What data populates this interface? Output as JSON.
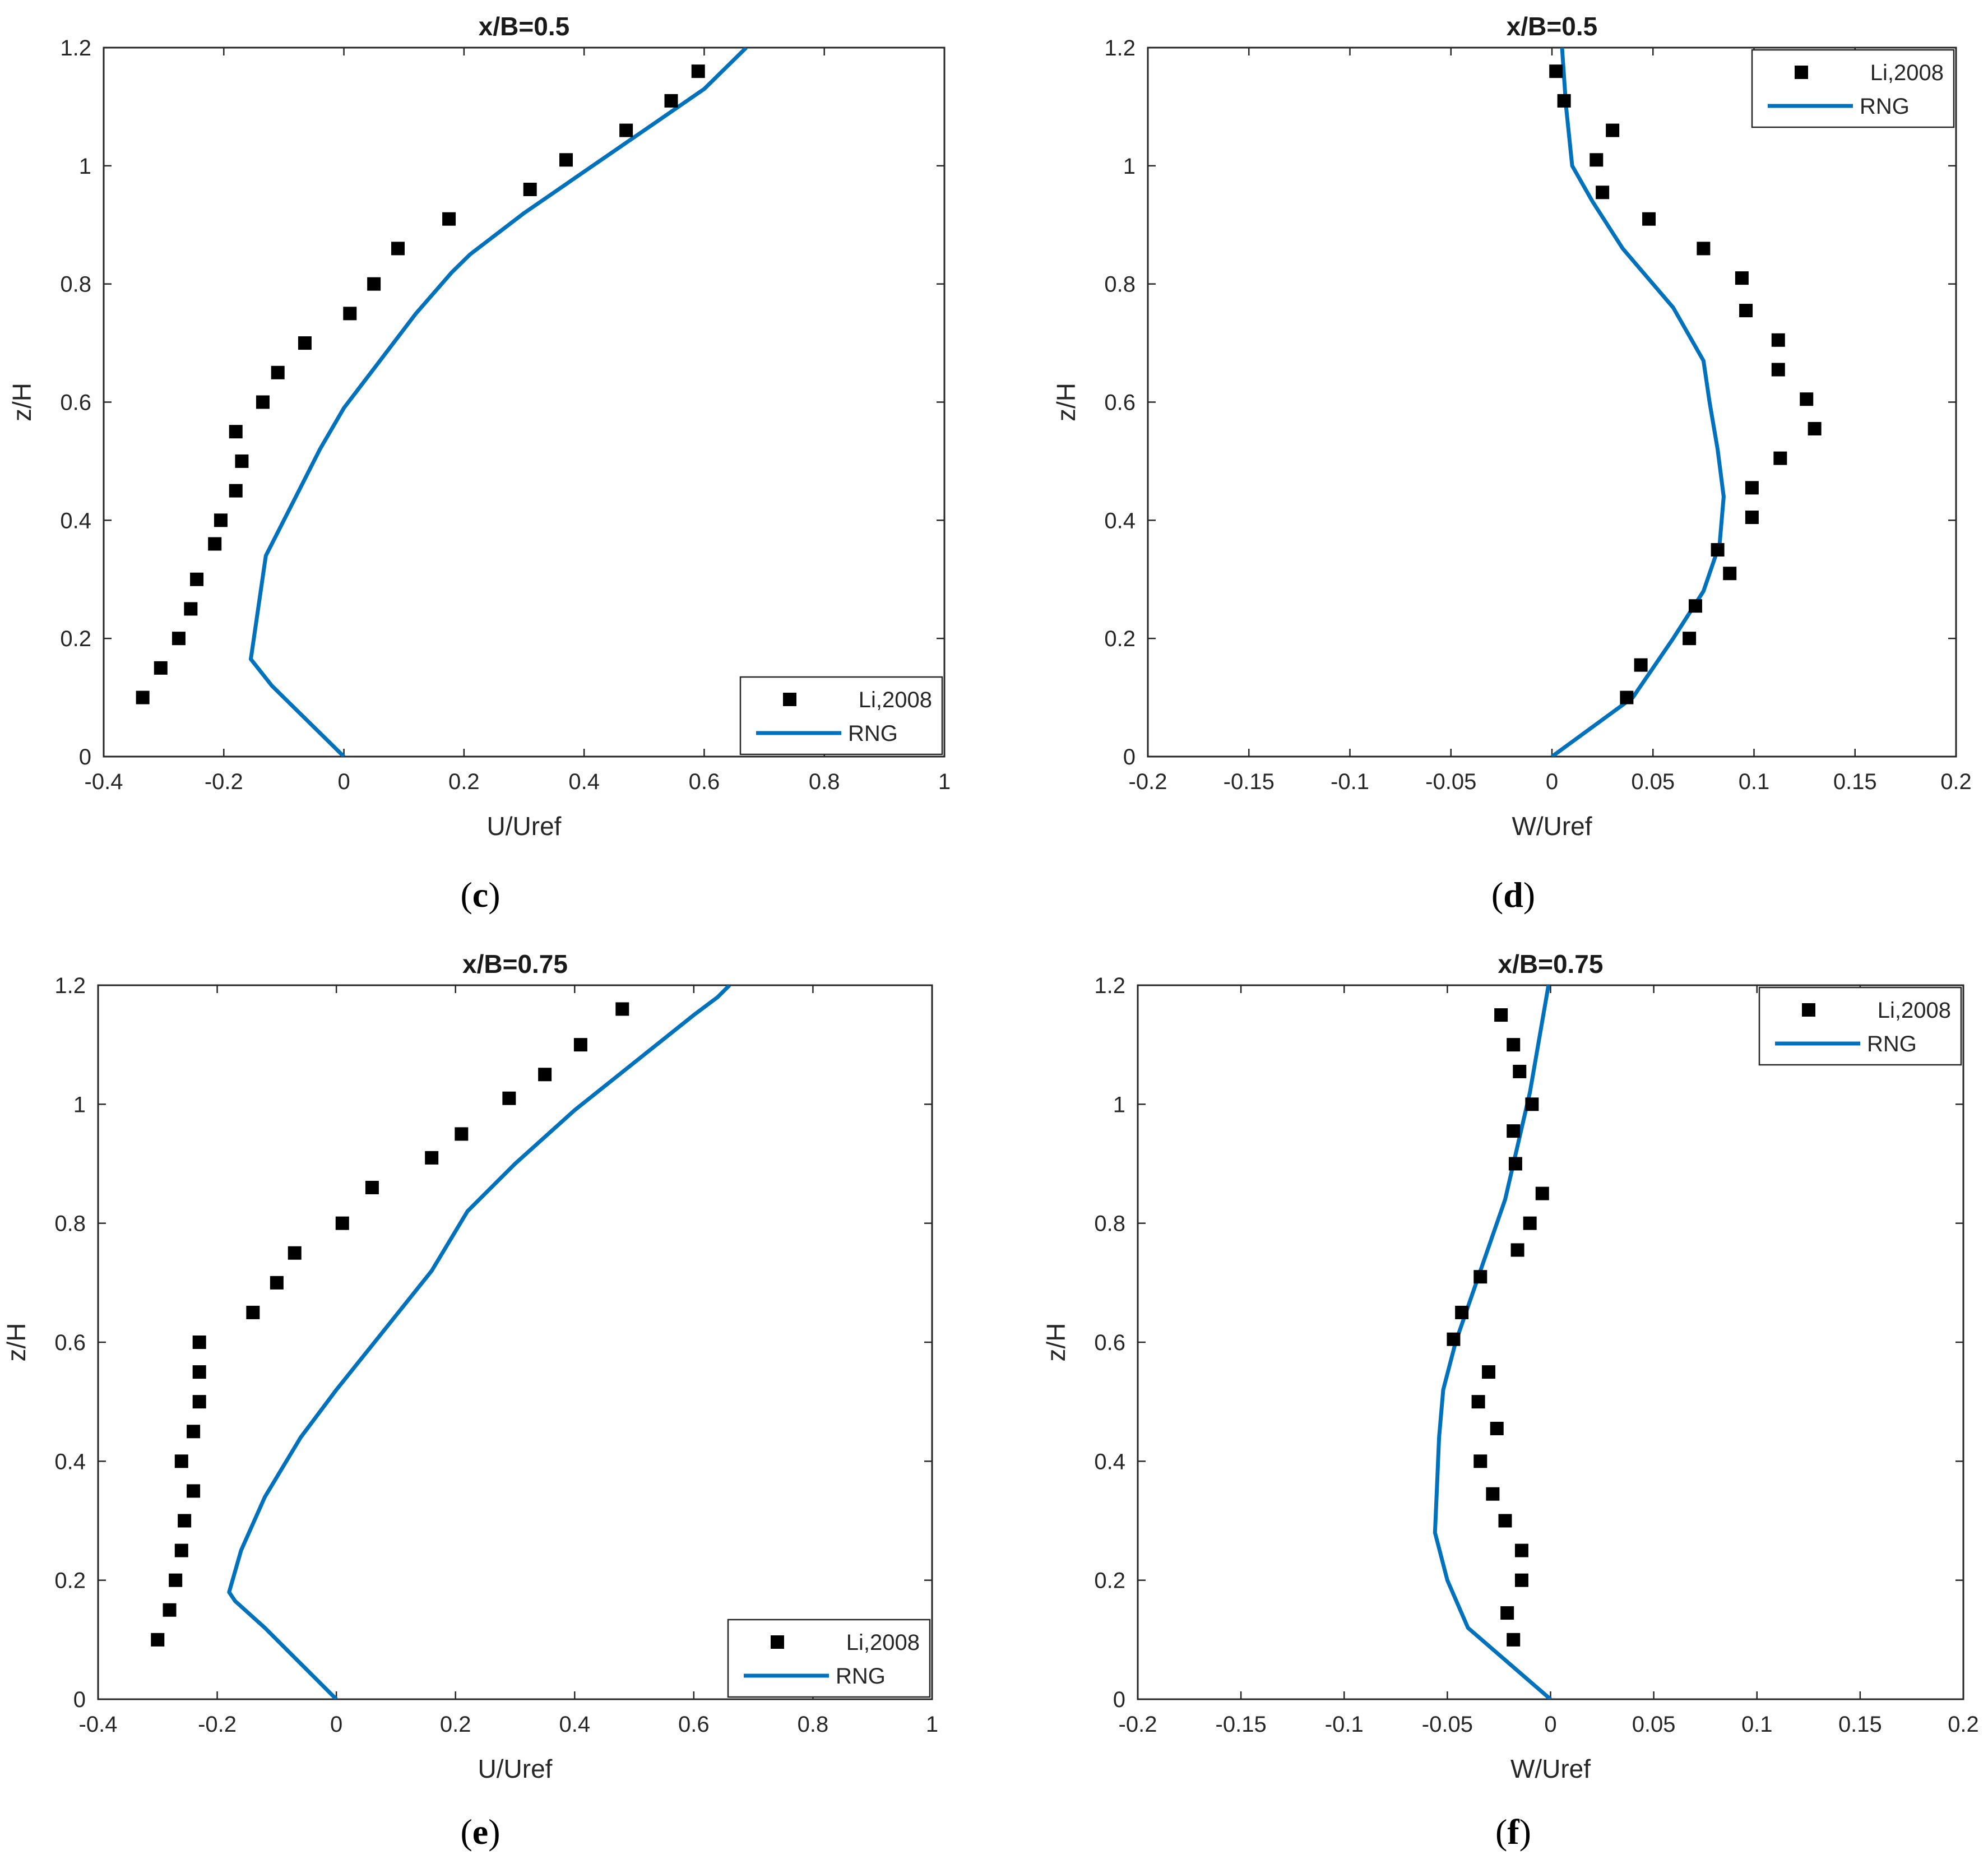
{
  "chart_data": [
    {
      "type": "scatter+line",
      "title": "x/B=0.5",
      "panel": "c",
      "xlabel": "U/Uref",
      "ylabel": "z/H",
      "xlim": [
        -0.4,
        1
      ],
      "ylim": [
        0,
        1.2
      ],
      "xticks": [
        -0.4,
        -0.2,
        0,
        0.2,
        0.4,
        0.6,
        0.8,
        1
      ],
      "xtick_labels": [
        "-0.4",
        "-0.2",
        "0",
        "0.2",
        "0.4",
        "0.6",
        "0.8",
        "1"
      ],
      "yticks": [
        0,
        0.2,
        0.4,
        0.6,
        0.8,
        1,
        1.2
      ],
      "ytick_labels": [
        "0",
        "0.2",
        "0.4",
        "0.6",
        "0.8",
        "1",
        "1.2"
      ],
      "legend_position": "bottom-right",
      "series": [
        {
          "name": "Li,2008",
          "kind": "markers",
          "x": [
            -0.335,
            -0.305,
            -0.275,
            -0.255,
            -0.245,
            -0.215,
            -0.205,
            -0.18,
            -0.17,
            -0.18,
            -0.135,
            -0.11,
            -0.065,
            0.01,
            0.05,
            0.09,
            0.175,
            0.31,
            0.37,
            0.47,
            0.545,
            0.59
          ],
          "y": [
            0.1,
            0.15,
            0.2,
            0.25,
            0.3,
            0.36,
            0.4,
            0.45,
            0.5,
            0.55,
            0.6,
            0.65,
            0.7,
            0.75,
            0.8,
            0.86,
            0.91,
            0.96,
            1.01,
            1.06,
            1.11,
            1.16
          ]
        },
        {
          "name": "RNG",
          "kind": "line",
          "x": [
            0,
            -0.04,
            -0.08,
            -0.12,
            -0.155,
            -0.15,
            -0.14,
            -0.13,
            -0.08,
            -0.04,
            0.0,
            0.06,
            0.12,
            0.18,
            0.21,
            0.3,
            0.4,
            0.5,
            0.6,
            0.64,
            0.67
          ],
          "y": [
            0,
            0.04,
            0.08,
            0.12,
            0.165,
            0.2,
            0.27,
            0.34,
            0.44,
            0.52,
            0.59,
            0.67,
            0.75,
            0.82,
            0.85,
            0.92,
            0.99,
            1.06,
            1.13,
            1.17,
            1.2
          ]
        }
      ]
    },
    {
      "type": "scatter+line",
      "title": "x/B=0.5",
      "panel": "d",
      "xlabel": "W/Uref",
      "ylabel": "z/H",
      "xlim": [
        -0.2,
        0.2
      ],
      "ylim": [
        0,
        1.2
      ],
      "xticks": [
        -0.2,
        -0.15,
        -0.1,
        -0.05,
        0,
        0.05,
        0.1,
        0.15,
        0.2
      ],
      "xtick_labels": [
        "-0.2",
        "-0.15",
        "-0.1",
        "-0.05",
        "0",
        "0.05",
        "0.1",
        "0.15",
        "0.2"
      ],
      "yticks": [
        0,
        0.2,
        0.4,
        0.6,
        0.8,
        1,
        1.2
      ],
      "ytick_labels": [
        "0",
        "0.2",
        "0.4",
        "0.6",
        "0.8",
        "1",
        "1.2"
      ],
      "legend_position": "top-right",
      "series": [
        {
          "name": "Li,2008",
          "kind": "markers",
          "x": [
            0.037,
            0.044,
            0.068,
            0.071,
            0.088,
            0.082,
            0.099,
            0.099,
            0.113,
            0.13,
            0.126,
            0.112,
            0.112,
            0.096,
            0.094,
            0.075,
            0.048,
            0.025,
            0.022,
            0.03,
            0.006,
            0.002
          ],
          "y": [
            0.1,
            0.155,
            0.2,
            0.255,
            0.31,
            0.35,
            0.405,
            0.455,
            0.505,
            0.555,
            0.605,
            0.655,
            0.705,
            0.755,
            0.81,
            0.86,
            0.91,
            0.955,
            1.01,
            1.06,
            1.11,
            1.16
          ],
          "marker_overflow_note": "points drawn within axes"
        },
        {
          "name": "RNG",
          "kind": "line",
          "x": [
            0,
            0.02,
            0.04,
            0.05,
            0.06,
            0.075,
            0.083,
            0.085,
            0.082,
            0.078,
            0.075,
            0.06,
            0.035,
            0.02,
            0.01,
            0.007,
            0.005
          ],
          "y": [
            0,
            0.05,
            0.1,
            0.15,
            0.2,
            0.28,
            0.36,
            0.44,
            0.52,
            0.6,
            0.67,
            0.76,
            0.86,
            0.94,
            1.0,
            1.1,
            1.2
          ]
        }
      ]
    },
    {
      "type": "scatter+line",
      "title": "x/B=0.75",
      "panel": "e",
      "xlabel": "U/Uref",
      "ylabel": "z/H",
      "xlim": [
        -0.4,
        1
      ],
      "ylim": [
        0,
        1.2
      ],
      "xticks": [
        -0.4,
        -0.2,
        0,
        0.2,
        0.4,
        0.6,
        0.8,
        1
      ],
      "xtick_labels": [
        "-0.4",
        "-0.2",
        "0",
        "0.2",
        "0.4",
        "0.6",
        "0.8",
        "1"
      ],
      "yticks": [
        0,
        0.2,
        0.4,
        0.6,
        0.8,
        1,
        1.2
      ],
      "ytick_labels": [
        "0",
        "0.2",
        "0.4",
        "0.6",
        "0.8",
        "1",
        "1.2"
      ],
      "legend_position": "bottom-right",
      "series": [
        {
          "name": "Li,2008",
          "kind": "markers",
          "x": [
            -0.3,
            -0.28,
            -0.27,
            -0.26,
            -0.255,
            -0.24,
            -0.26,
            -0.24,
            -0.23,
            -0.23,
            -0.23,
            -0.14,
            -0.1,
            -0.07,
            0.01,
            0.06,
            0.16,
            0.21,
            0.29,
            0.35,
            0.41,
            0.48
          ],
          "y": [
            0.1,
            0.15,
            0.2,
            0.25,
            0.3,
            0.35,
            0.4,
            0.45,
            0.5,
            0.55,
            0.6,
            0.65,
            0.7,
            0.75,
            0.8,
            0.86,
            0.91,
            0.95,
            1.01,
            1.05,
            1.1,
            1.16
          ]
        },
        {
          "name": "RNG",
          "kind": "line",
          "x": [
            0,
            -0.04,
            -0.08,
            -0.12,
            -0.17,
            -0.18,
            -0.16,
            -0.12,
            -0.06,
            0.0,
            0.08,
            0.16,
            0.22,
            0.3,
            0.4,
            0.5,
            0.6,
            0.64,
            0.66
          ],
          "y": [
            0,
            0.04,
            0.08,
            0.12,
            0.165,
            0.18,
            0.25,
            0.34,
            0.44,
            0.52,
            0.62,
            0.72,
            0.82,
            0.9,
            0.99,
            1.07,
            1.15,
            1.18,
            1.2
          ]
        }
      ]
    },
    {
      "type": "scatter+line",
      "title": "x/B=0.75",
      "panel": "f",
      "xlabel": "W/Uref",
      "ylabel": "z/H",
      "xlim": [
        -0.2,
        0.2
      ],
      "ylim": [
        0,
        1.2
      ],
      "xticks": [
        -0.2,
        -0.15,
        -0.1,
        -0.05,
        0,
        0.05,
        0.1,
        0.15,
        0.2
      ],
      "xtick_labels": [
        "-0.2",
        "-0.15",
        "-0.1",
        "-0.05",
        "0",
        "0.05",
        "0.1",
        "0.15",
        "0.2"
      ],
      "yticks": [
        0,
        0.2,
        0.4,
        0.6,
        0.8,
        1,
        1.2
      ],
      "ytick_labels": [
        "0",
        "0.2",
        "0.4",
        "0.6",
        "0.8",
        "1",
        "1.2"
      ],
      "legend_position": "top-right",
      "series": [
        {
          "name": "Li,2008",
          "kind": "markers",
          "x": [
            -0.018,
            -0.021,
            -0.014,
            -0.014,
            -0.022,
            -0.028,
            -0.034,
            -0.026,
            -0.035,
            -0.03,
            -0.047,
            -0.043,
            -0.034,
            -0.016,
            -0.01,
            -0.004,
            -0.017,
            -0.018,
            -0.009,
            -0.015,
            -0.018,
            -0.024
          ],
          "y": [
            0.1,
            0.145,
            0.2,
            0.25,
            0.3,
            0.345,
            0.4,
            0.455,
            0.5,
            0.55,
            0.605,
            0.65,
            0.71,
            0.755,
            0.8,
            0.85,
            0.9,
            0.955,
            1.0,
            1.055,
            1.1,
            1.15
          ]
        },
        {
          "name": "RNG",
          "kind": "line",
          "x": [
            0,
            -0.02,
            -0.04,
            -0.05,
            -0.056,
            -0.055,
            -0.054,
            -0.052,
            -0.046,
            -0.038,
            -0.03,
            -0.022,
            -0.016,
            -0.01,
            -0.006,
            -0.001
          ],
          "y": [
            0,
            0.06,
            0.12,
            0.2,
            0.28,
            0.36,
            0.44,
            0.52,
            0.6,
            0.68,
            0.76,
            0.84,
            0.93,
            1.02,
            1.1,
            1.2
          ]
        }
      ]
    }
  ],
  "panel_labels": [
    "(c)",
    "(d)",
    "(e)",
    "(f)"
  ],
  "colors": {
    "line": "#0072BD",
    "marker": "#000000",
    "axes": "#262626",
    "tick_grid": "#262626"
  }
}
